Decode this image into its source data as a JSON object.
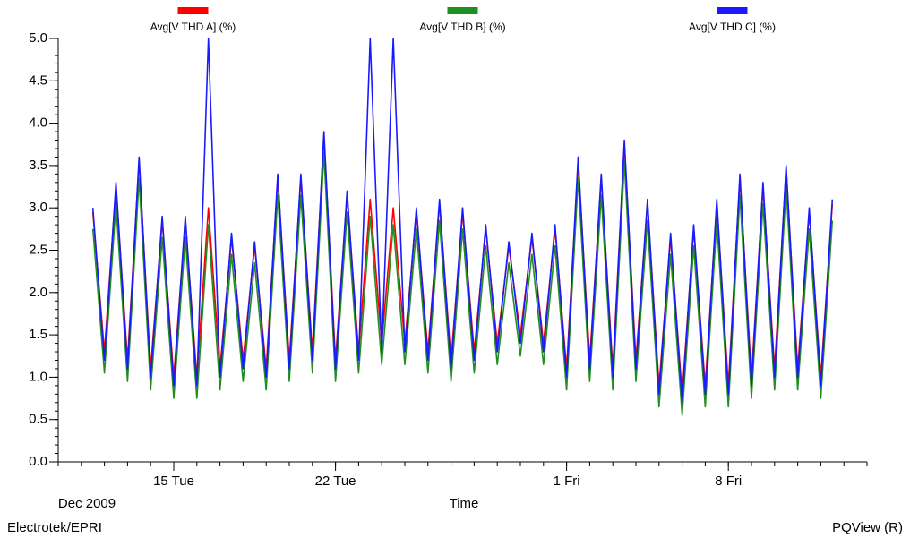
{
  "chart_data": {
    "type": "line",
    "x_label": "Time",
    "x_period": "Dec 2009",
    "footer_left": "Electrotek/EPRI",
    "footer_right": "PQView (R)",
    "x": [
      "2009-12-11 12:00",
      "2009-12-12 00:00",
      "2009-12-12 12:00",
      "2009-12-13 00:00",
      "2009-12-13 12:00",
      "2009-12-14 00:00",
      "2009-12-14 12:00",
      "2009-12-15 00:00",
      "2009-12-15 12:00",
      "2009-12-16 00:00",
      "2009-12-16 12:00",
      "2009-12-17 00:00",
      "2009-12-17 12:00",
      "2009-12-18 00:00",
      "2009-12-18 12:00",
      "2009-12-19 00:00",
      "2009-12-19 12:00",
      "2009-12-20 00:00",
      "2009-12-20 12:00",
      "2009-12-21 00:00",
      "2009-12-21 12:00",
      "2009-12-22 00:00",
      "2009-12-22 12:00",
      "2009-12-23 00:00",
      "2009-12-23 12:00",
      "2009-12-24 00:00",
      "2009-12-24 12:00",
      "2009-12-25 00:00",
      "2009-12-25 12:00",
      "2009-12-26 00:00",
      "2009-12-26 12:00",
      "2009-12-27 00:00",
      "2009-12-27 12:00",
      "2009-12-28 00:00",
      "2009-12-28 12:00",
      "2009-12-29 00:00",
      "2009-12-29 12:00",
      "2009-12-30 00:00",
      "2009-12-30 12:00",
      "2009-12-31 00:00",
      "2009-12-31 12:00",
      "2010-01-01 00:00",
      "2010-01-01 12:00",
      "2010-01-02 00:00",
      "2010-01-02 12:00",
      "2010-01-03 00:00",
      "2010-01-03 12:00",
      "2010-01-04 00:00",
      "2010-01-04 12:00",
      "2010-01-05 00:00",
      "2010-01-05 12:00",
      "2010-01-06 00:00",
      "2010-01-06 12:00",
      "2010-01-07 00:00",
      "2010-01-07 12:00",
      "2010-01-08 00:00",
      "2010-01-08 12:00",
      "2010-01-09 00:00",
      "2010-01-09 12:00",
      "2010-01-10 00:00",
      "2010-01-10 12:00",
      "2010-01-11 00:00",
      "2010-01-11 12:00",
      "2010-01-12 00:00",
      "2010-01-12 12:00"
    ],
    "series": [
      {
        "name": "Avg[V THD A] (%)",
        "color": "#ff0000",
        "values": [
          2.95,
          1.3,
          3.25,
          1.2,
          3.55,
          1.1,
          2.85,
          1.0,
          2.85,
          1.0,
          3.0,
          1.1,
          2.65,
          1.2,
          2.55,
          1.1,
          3.35,
          1.2,
          3.35,
          1.3,
          3.85,
          1.2,
          3.15,
          1.3,
          3.1,
          1.4,
          3.0,
          1.4,
          2.95,
          1.3,
          3.05,
          1.2,
          2.95,
          1.3,
          2.75,
          1.4,
          2.55,
          1.5,
          2.65,
          1.4,
          2.75,
          1.1,
          3.55,
          1.2,
          3.35,
          1.1,
          3.75,
          1.2,
          3.05,
          0.9,
          2.65,
          0.8,
          2.75,
          0.9,
          3.05,
          0.9,
          3.35,
          1.0,
          3.25,
          1.1,
          3.45,
          1.1,
          2.95,
          1.0,
          3.05
        ]
      },
      {
        "name": "Avg[V THD B] (%)",
        "color": "#1f8f1f",
        "values": [
          2.75,
          1.05,
          3.05,
          0.95,
          3.35,
          0.85,
          2.65,
          0.75,
          2.65,
          0.75,
          2.8,
          0.85,
          2.45,
          0.95,
          2.35,
          0.85,
          3.15,
          0.95,
          3.15,
          1.05,
          3.65,
          0.95,
          2.95,
          1.05,
          2.9,
          1.15,
          2.8,
          1.15,
          2.75,
          1.05,
          2.85,
          0.95,
          2.75,
          1.05,
          2.55,
          1.15,
          2.35,
          1.25,
          2.45,
          1.15,
          2.55,
          0.85,
          3.35,
          0.95,
          3.15,
          0.85,
          3.55,
          0.95,
          2.85,
          0.65,
          2.45,
          0.55,
          2.55,
          0.65,
          2.85,
          0.65,
          3.15,
          0.75,
          3.05,
          0.85,
          3.25,
          0.85,
          2.75,
          0.75,
          2.85
        ]
      },
      {
        "name": "Avg[V THD C] (%)",
        "color": "#1a1aff",
        "values": [
          3.0,
          1.2,
          3.3,
          1.1,
          3.6,
          1.0,
          2.9,
          0.9,
          2.9,
          0.9,
          5.0,
          1.0,
          2.7,
          1.1,
          2.6,
          1.0,
          3.4,
          1.1,
          3.4,
          1.2,
          3.9,
          1.1,
          3.2,
          1.2,
          5.0,
          1.3,
          5.0,
          1.3,
          3.0,
          1.2,
          3.1,
          1.1,
          3.0,
          1.2,
          2.8,
          1.3,
          2.6,
          1.4,
          2.7,
          1.3,
          2.8,
          1.0,
          3.6,
          1.1,
          3.4,
          1.0,
          3.8,
          1.1,
          3.1,
          0.8,
          2.7,
          0.7,
          2.8,
          0.8,
          3.1,
          0.8,
          3.4,
          0.9,
          3.3,
          1.0,
          3.5,
          1.0,
          3.0,
          0.9,
          3.1
        ]
      }
    ],
    "xlim": [
      "2009-12-10 00:00",
      "2010-01-14 00:00"
    ],
    "xticks": [
      {
        "value": "2009-12-15 00:00",
        "label": "15 Tue"
      },
      {
        "value": "2009-12-22 00:00",
        "label": "22 Tue"
      },
      {
        "value": "2010-01-01 00:00",
        "label": "1 Fri"
      },
      {
        "value": "2010-01-08 00:00",
        "label": "8 Fri"
      }
    ],
    "ylim": [
      0,
      5
    ],
    "yticks": [
      {
        "value": 0,
        "label": "0.0"
      },
      0.5,
      {
        "value": 1,
        "label": "1.0"
      },
      1.5,
      {
        "value": 2,
        "label": "2.0"
      },
      2.5,
      {
        "value": 3,
        "label": "3.0"
      },
      3.5,
      {
        "value": 4,
        "label": "4.0"
      },
      4.5,
      {
        "value": 5,
        "label": "5.0"
      }
    ],
    "legend": "top"
  }
}
